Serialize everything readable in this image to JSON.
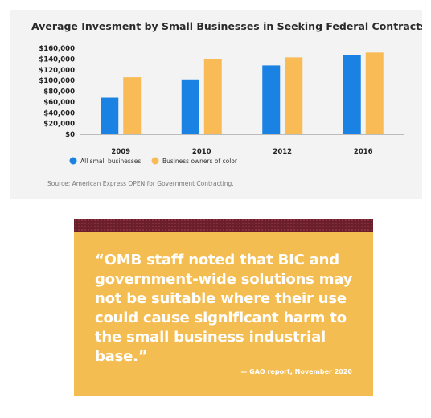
{
  "chart_data": {
    "type": "bar",
    "title": "Average Invesment by Small Businesses in Seeking Federal Contracts",
    "categories": [
      "2009",
      "2010",
      "2012",
      "2016"
    ],
    "series": [
      {
        "name": "All small businesses",
        "color": "#1a82e2",
        "values": [
          68000,
          102000,
          128000,
          147000
        ]
      },
      {
        "name": "Business owners of color",
        "color": "#f9bb55",
        "values": [
          106000,
          140000,
          143000,
          152000
        ]
      }
    ],
    "yticks": [
      "$160,000",
      "$140,000",
      "$120,000",
      "$100,000",
      "$80,000",
      "$60,000",
      "$40,000",
      "$20,000",
      "$0"
    ],
    "ylim": [
      0,
      160000
    ],
    "grid": false,
    "legend": "bottom-left",
    "source": "Source: American Express OPEN for Government Contracting."
  },
  "quote": {
    "text": "“OMB staff noted that BIC and government-wide solutions may not be suitable where their use could cause significant harm to the small business industrial base.”",
    "attribution": "— GAO report, November 2020",
    "band_color": "#6a1f2a",
    "background_color": "#f4bd52"
  }
}
